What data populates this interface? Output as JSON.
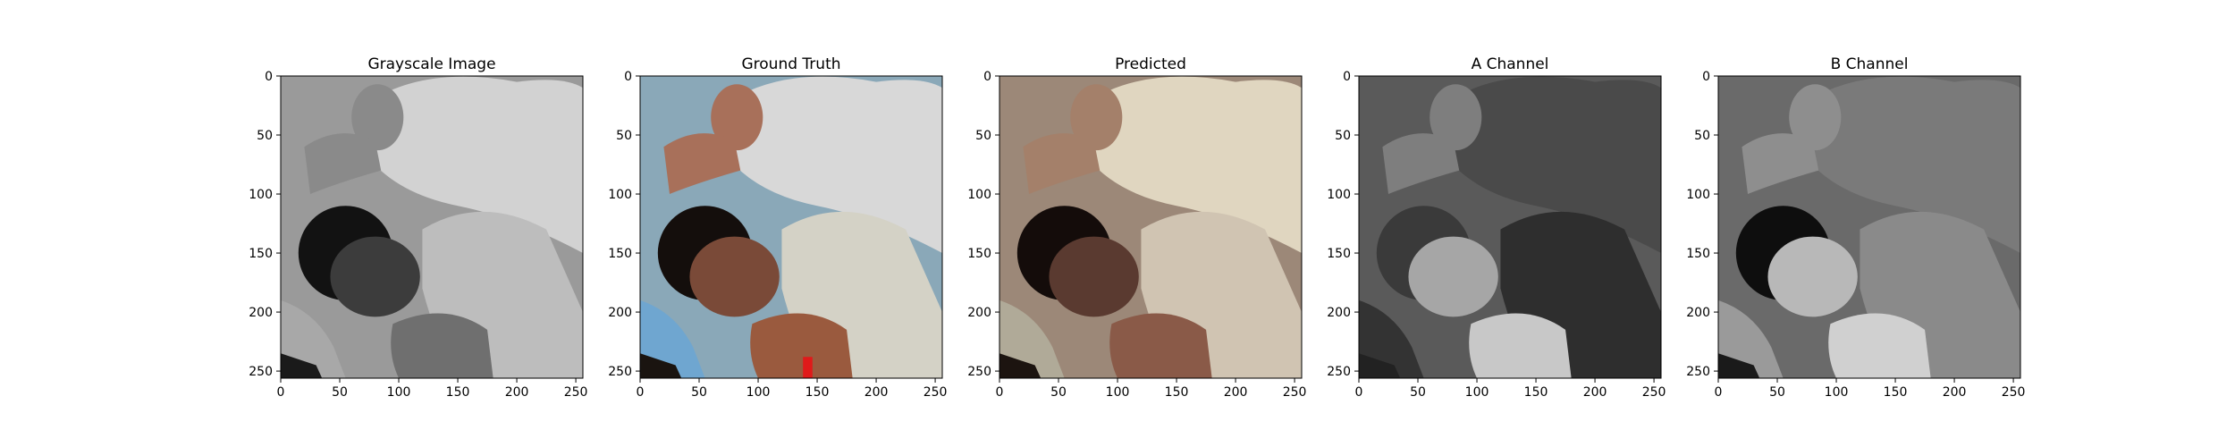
{
  "figure": {
    "panels": [
      {
        "title": "Grayscale Image",
        "image": "grayscale photo: adult in hood leaning over sleeping child",
        "x_ticks": [
          "0",
          "50",
          "100",
          "150",
          "200",
          "250"
        ],
        "y_ticks": [
          "0",
          "50",
          "100",
          "150",
          "200",
          "250"
        ],
        "palette": {
          "bg": "#9a9a9a",
          "hood": "#d2d2d2",
          "hand": "#8a8a8a",
          "face": "#3c3c3c",
          "hair": "#121212",
          "shirt": "#bdbdbd",
          "arm": "#6f6f6f",
          "bag": "#a8a8a8",
          "dark": "#1a1a1a"
        }
      },
      {
        "title": "Ground Truth",
        "image": "color photo: adult in white hood with hand on child's head",
        "x_ticks": [
          "0",
          "50",
          "100",
          "150",
          "200",
          "250"
        ],
        "y_ticks": [
          "0",
          "50",
          "100",
          "150",
          "200",
          "250"
        ],
        "palette": {
          "bg": "#8aa8b8",
          "hood": "#d8d8d8",
          "hand": "#a8705a",
          "face": "#7a4a38",
          "hair": "#140e0c",
          "shirt": "#d4d2c6",
          "arm": "#9a5a3e",
          "bag": "#6fa6d0",
          "dark": "#1a1410",
          "accent": "#e01a1a"
        }
      },
      {
        "title": "Predicted",
        "image": "colorized prediction with warm sepia tones",
        "x_ticks": [
          "0",
          "50",
          "100",
          "150",
          "200",
          "250"
        ],
        "y_ticks": [
          "0",
          "50",
          "100",
          "150",
          "200",
          "250"
        ],
        "palette": {
          "bg": "#9c8878",
          "hood": "#e0d6c0",
          "hand": "#a4806a",
          "face": "#5a3a30",
          "hair": "#140c0a",
          "shirt": "#d0c4b2",
          "arm": "#8a5a48",
          "bag": "#b0aa98",
          "dark": "#1c1410"
        }
      },
      {
        "title": "A Channel",
        "image": "gray A chrominance channel map",
        "x_ticks": [
          "0",
          "50",
          "100",
          "150",
          "200",
          "250"
        ],
        "y_ticks": [
          "0",
          "50",
          "100",
          "150",
          "200",
          "250"
        ],
        "palette": {
          "bg": "#5a5a5a",
          "hood": "#4a4a4a",
          "hand": "#7e7e7e",
          "face": "#a6a6a6",
          "hair": "#3a3a3a",
          "shirt": "#2e2e2e",
          "arm": "#c8c8c8",
          "bag": "#333333",
          "dark": "#222222"
        }
      },
      {
        "title": "B Channel",
        "image": "gray B chrominance channel map",
        "x_ticks": [
          "0",
          "50",
          "100",
          "150",
          "200",
          "250"
        ],
        "y_ticks": [
          "0",
          "50",
          "100",
          "150",
          "200",
          "250"
        ],
        "palette": {
          "bg": "#6a6a6a",
          "hood": "#7a7a7a",
          "hand": "#8e8e8e",
          "face": "#b8b8b8",
          "hair": "#0e0e0e",
          "shirt": "#8a8a8a",
          "arm": "#d0d0d0",
          "bag": "#9a9a9a",
          "dark": "#1a1a1a"
        }
      }
    ]
  }
}
